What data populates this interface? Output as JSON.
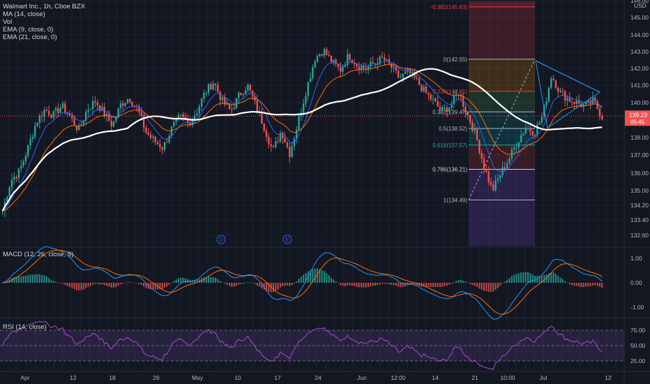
{
  "legend": {
    "symbol": "Walmart Inc., 1h, Cboe BZX",
    "ma": "MA (14, close)",
    "vol": "Vol",
    "ema9": "EMA (9, close, 0)",
    "ema21": "EMA (21, close, 0)",
    "macd": "MACD (12, 26, close, 9)",
    "rsi": "RSI (14, close)"
  },
  "chart_data": [
    {
      "type": "candlestick",
      "title": "Walmart Inc., 1h, Cboe BZX",
      "currency": "USD",
      "ylim": [
        132.2,
        146.0
      ],
      "y_ticks": [
        132.6,
        133.4,
        134.2,
        135.0,
        136.0,
        137.0,
        138.0,
        139.0,
        140.0,
        141.0,
        142.0,
        143.0,
        144.0,
        145.0,
        146.0
      ],
      "y_tick_labels": [
        "132.60",
        "133.40",
        "134.20",
        "135.00",
        "136.00",
        "137.00",
        "138.00",
        "139.00",
        "140.00",
        "141.00",
        "142.00",
        "143.00",
        "144.00",
        "145.00",
        "146.00"
      ],
      "x_tick_labels": [
        "Apr",
        "12",
        "18",
        "26",
        "May",
        "10",
        "17",
        "24",
        "Jun",
        "12:00",
        "14",
        "21",
        "10:00",
        "Jul",
        "12"
      ],
      "last_price": "139.23",
      "countdown": "05:45",
      "event_markers": [
        "D",
        "E"
      ],
      "fibonacci": [
        {
          "label": "-0.382(145.63)",
          "price": 145.63,
          "color": "#f23645"
        },
        {
          "label": "0(142.55)",
          "price": 142.55,
          "color": "#b2b5be"
        },
        {
          "label": "0.236(140.65)",
          "price": 140.65,
          "color": "#f23645"
        },
        {
          "label": "0.382(139.47)",
          "price": 139.47,
          "color": "#b2b5be"
        },
        {
          "label": "0.5(138.52)",
          "price": 138.52,
          "color": "#b2b5be"
        },
        {
          "label": "0.618(137.57)",
          "price": 137.57,
          "color": "#26a69a"
        },
        {
          "label": "0.786(136.21)",
          "price": 136.21,
          "color": "#d1d4dc"
        },
        {
          "label": "1(134.49)",
          "price": 134.49,
          "color": "#b2b5be"
        }
      ],
      "close_path": [
        133.9,
        135.6,
        136.1,
        137.4,
        138.9,
        139.6,
        139.3,
        139.8,
        139.2,
        138.4,
        139.6,
        140.1,
        139.4,
        138.7,
        139.9,
        140.3,
        139.6,
        138.3,
        137.8,
        137.4,
        138.5,
        139.2,
        138.8,
        139.5,
        140.6,
        141.2,
        140.1,
        139.5,
        140.4,
        141.0,
        139.8,
        138.6,
        137.2,
        138.4,
        137.1,
        138.9,
        140.8,
        142.6,
        143.1,
        142.4,
        141.9,
        142.8,
        142.2,
        142.0,
        142.3,
        142.6,
        142.1,
        141.4,
        141.8,
        141.3,
        140.6,
        140.1,
        139.5,
        139.8,
        140.6,
        139.4,
        138.2,
        136.4,
        135.0,
        136.0,
        136.8,
        137.8,
        138.6,
        138.3,
        139.3,
        141.6,
        140.6,
        140.2,
        140.0,
        139.8,
        140.1,
        139.2
      ]
    },
    {
      "type": "line",
      "title": "MACD (12, 26, close, 9)",
      "ylim": [
        -1.2,
        1.2
      ],
      "y_ticks": [
        1.0,
        0.0,
        -1.0
      ],
      "y_tick_labels": [
        "1.00",
        "0.00",
        "-1.00"
      ]
    },
    {
      "type": "line",
      "title": "RSI (14, close)",
      "ylim": [
        18,
        80
      ],
      "y_ticks": [
        75,
        50,
        25
      ],
      "y_tick_labels": [
        "75.00",
        "50.00",
        "25.00"
      ]
    }
  ],
  "colors": {
    "up": "#26a69a",
    "down": "#ef5350",
    "ma": "#ffffff",
    "ema9": "#2962ff",
    "ema21": "#ff6d00",
    "macd": "#2196f3",
    "signal": "#ff6d00",
    "rsi": "#b046d4"
  }
}
